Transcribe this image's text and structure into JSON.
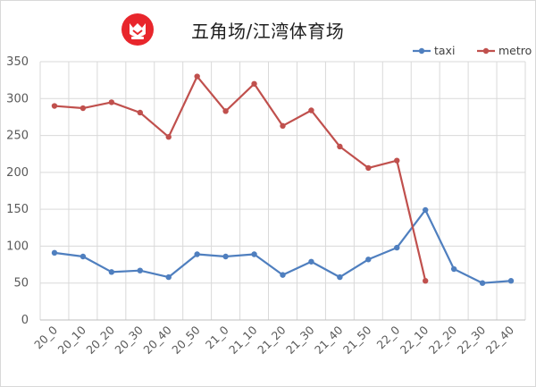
{
  "logo": {
    "icon": "mascot-logo-icon",
    "color": "#e8262c"
  },
  "chart_data": {
    "type": "line",
    "title": "五角场/江湾体育场",
    "categories": [
      "20_0",
      "20_10",
      "20_20",
      "20_30",
      "20_40",
      "20_50",
      "21_0",
      "21_10",
      "21_20",
      "21_30",
      "21_40",
      "21_50",
      "22_0",
      "22_10",
      "22_20",
      "22_30",
      "22_40"
    ],
    "series": [
      {
        "name": "taxi",
        "color": "#4f7fbf",
        "values": [
          91,
          86,
          65,
          67,
          58,
          89,
          86,
          89,
          61,
          79,
          58,
          82,
          98,
          149,
          69,
          50,
          53
        ]
      },
      {
        "name": "metro",
        "color": "#c0504d",
        "values": [
          290,
          287,
          295,
          281,
          248,
          330,
          283,
          320,
          263,
          284,
          235,
          206,
          216,
          53,
          null,
          null,
          null
        ]
      }
    ],
    "ylim": [
      0,
      350
    ],
    "yticks": [
      0,
      50,
      100,
      150,
      200,
      250,
      300,
      350
    ],
    "grid": true,
    "legend": "top-right",
    "xlabel": "",
    "ylabel": ""
  }
}
